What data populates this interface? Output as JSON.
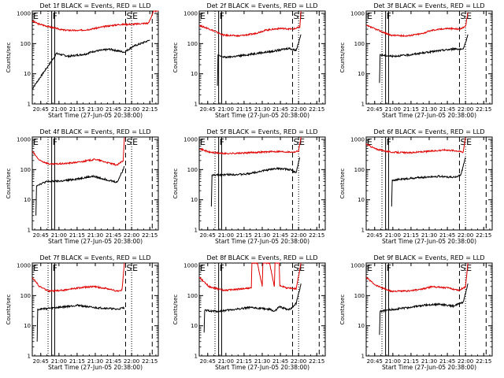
{
  "colors": {
    "background": "#ffffff",
    "events": "#000000",
    "lld": "#e00000",
    "axis": "#000000"
  },
  "chart_data": [
    {
      "type": "line",
      "title": "Det 1f BLACK = Events, RED = LLD",
      "xlabel": "Start Time (27-Jun-05 20:38:00)",
      "ylabel": "Counts/sec",
      "yscale": "log",
      "ylim": [
        1,
        1200
      ],
      "xlim": [
        0,
        104
      ],
      "xtick_values": [
        7,
        22,
        37,
        52,
        67,
        82,
        97
      ],
      "xtick_labels": [
        "20:45",
        "21:00",
        "21:15",
        "21:30",
        "21:45",
        "22:00",
        "22:15"
      ],
      "ytick_values": [
        1,
        10,
        100,
        1000
      ],
      "ytick_labels": [
        "1",
        "10",
        "100",
        "1000"
      ],
      "markers": [
        {
          "label": "E",
          "x": 0
        },
        {
          "label": "F",
          "x": 16
        },
        {
          "label": "S",
          "x": 77
        },
        {
          "label": "E",
          "x": 82
        }
      ],
      "events": {
        "x": [
          0,
          19,
          19.5,
          30,
          44,
          50,
          64,
          76,
          83,
          97
        ],
        "values": [
          3.2,
          40,
          47,
          38,
          45,
          55,
          65,
          52,
          80,
          130
        ]
      },
      "lld": {
        "x": [
          0,
          5,
          18,
          26,
          38,
          48,
          60,
          72,
          84,
          96,
          100,
          104
        ],
        "values": [
          560,
          450,
          330,
          280,
          270,
          300,
          370,
          430,
          440,
          480,
          1150,
          1250
        ]
      }
    },
    {
      "type": "line",
      "title": "Det 2f BLACK = Events, RED = LLD",
      "xlabel": "Start Time (27-Jun-05 20:38:00)",
      "ylabel": "Counts/sec",
      "yscale": "log",
      "ylim": [
        1,
        1200
      ],
      "xlim": [
        0,
        104
      ],
      "xtick_values": [
        7,
        22,
        37,
        52,
        67,
        82,
        97
      ],
      "xtick_labels": [
        "20:45",
        "21:00",
        "21:15",
        "21:30",
        "21:45",
        "22:00",
        "22:15"
      ],
      "ytick_values": [
        1,
        10,
        100,
        1000
      ],
      "ytick_labels": [
        "1",
        "10",
        "100",
        "1000"
      ],
      "markers": [
        {
          "label": "E",
          "x": 0
        },
        {
          "label": "F",
          "x": 16
        },
        {
          "label": "S",
          "x": 77
        },
        {
          "label": "E",
          "x": 82
        }
      ],
      "events": {
        "x": [
          15,
          15.5,
          22,
          35,
          48,
          60,
          74,
          80,
          84
        ],
        "values": [
          4,
          40,
          35,
          40,
          48,
          55,
          70,
          60,
          200
        ],
        "tail": [
          [
            80,
            30
          ],
          [
            85,
            20
          ],
          [
            86,
            12
          ],
          [
            87,
            9
          ]
        ]
      },
      "lld": {
        "x": [
          0,
          8,
          20,
          33,
          45,
          55,
          67,
          77,
          83,
          84
        ],
        "values": [
          400,
          310,
          190,
          180,
          210,
          280,
          320,
          300,
          350,
          1200
        ]
      }
    },
    {
      "type": "line",
      "title": "Det 3f BLACK = Events, RED = LLD",
      "xlabel": "Start Time (27-Jun-05 20:38:00)",
      "ylabel": "Counts/sec",
      "yscale": "log",
      "ylim": [
        1,
        1200
      ],
      "xlim": [
        0,
        104
      ],
      "xtick_values": [
        7,
        22,
        37,
        52,
        67,
        82,
        97
      ],
      "xtick_labels": [
        "20:45",
        "21:00",
        "21:15",
        "21:30",
        "21:45",
        "22:00",
        "22:15"
      ],
      "ytick_values": [
        1,
        10,
        100,
        1000
      ],
      "ytick_labels": [
        "1",
        "10",
        "100",
        "1000"
      ],
      "markers": [
        {
          "label": "E",
          "x": 0
        },
        {
          "label": "F",
          "x": 16
        },
        {
          "label": "S",
          "x": 77
        },
        {
          "label": "E",
          "x": 82
        }
      ],
      "events": {
        "x": [
          11,
          11.5,
          22,
          35,
          48,
          60,
          74,
          80,
          84
        ],
        "values": [
          5,
          42,
          38,
          42,
          50,
          58,
          68,
          62,
          200
        ]
      },
      "lld": {
        "x": [
          0,
          8,
          20,
          33,
          45,
          55,
          67,
          77,
          82,
          84
        ],
        "values": [
          400,
          300,
          190,
          180,
          210,
          280,
          320,
          300,
          360,
          1100
        ]
      }
    },
    {
      "type": "line",
      "title": "Det 4f BLACK = Events, RED = LLD",
      "xlabel": "Start Time (27-Jun-05 20:38:00)",
      "ylabel": "Counts/sec",
      "yscale": "log",
      "ylim": [
        1,
        1200
      ],
      "xlim": [
        0,
        104
      ],
      "xtick_values": [
        7,
        22,
        37,
        52,
        67,
        82,
        97
      ],
      "xtick_labels": [
        "20:45",
        "21:00",
        "21:15",
        "21:30",
        "21:45",
        "22:00",
        "22:15"
      ],
      "ytick_values": [
        1,
        10,
        100,
        1000
      ],
      "ytick_labels": [
        "1",
        "10",
        "100",
        "1000"
      ],
      "markers": [
        {
          "label": "E",
          "x": 0
        },
        {
          "label": "F",
          "x": 16
        },
        {
          "label": "S",
          "x": 77
        },
        {
          "label": "E",
          "x": 82
        }
      ],
      "events": {
        "x": [
          3,
          3.5,
          12,
          25,
          38,
          50,
          60,
          70,
          75,
          76
        ],
        "values": [
          3,
          30,
          40,
          42,
          50,
          60,
          48,
          38,
          100,
          130
        ]
      },
      "lld": {
        "x": [
          0,
          6,
          15,
          28,
          40,
          52,
          60,
          70,
          75,
          76
        ],
        "values": [
          400,
          200,
          150,
          160,
          180,
          220,
          180,
          140,
          200,
          1150
        ]
      }
    },
    {
      "type": "line",
      "title": "Det 5f BLACK = Events, RED = LLD",
      "xlabel": "Start Time (27-Jun-05 20:38:00)",
      "ylabel": "Counts/sec",
      "yscale": "log",
      "ylim": [
        1,
        1200
      ],
      "xlim": [
        0,
        104
      ],
      "xtick_values": [
        7,
        22,
        37,
        52,
        67,
        82,
        97
      ],
      "xtick_labels": [
        "20:45",
        "21:00",
        "21:15",
        "21:30",
        "21:45",
        "22:00",
        "22:15"
      ],
      "ytick_values": [
        1,
        10,
        100,
        1000
      ],
      "ytick_labels": [
        "1",
        "10",
        "100",
        "1000"
      ],
      "markers": [
        {
          "label": "E",
          "x": 0
        },
        {
          "label": "F",
          "x": 16
        },
        {
          "label": "S",
          "x": 77
        },
        {
          "label": "E",
          "x": 82
        }
      ],
      "events": {
        "x": [
          10,
          10.5,
          22,
          38,
          52,
          64,
          75,
          80,
          83
        ],
        "values": [
          6,
          65,
          68,
          70,
          90,
          110,
          100,
          80,
          250
        ]
      },
      "lld": {
        "x": [
          0,
          8,
          20,
          35,
          50,
          65,
          78,
          82,
          84
        ],
        "values": [
          500,
          380,
          340,
          350,
          380,
          400,
          380,
          420,
          1200
        ]
      }
    },
    {
      "type": "line",
      "title": "Det 6f BLACK = Events, RED = LLD",
      "xlabel": "Start Time (27-Jun-05 20:38:00)",
      "ylabel": "Counts/sec",
      "yscale": "log",
      "ylim": [
        1,
        1200
      ],
      "xlim": [
        0,
        104
      ],
      "xtick_values": [
        7,
        22,
        37,
        52,
        67,
        82,
        97
      ],
      "xtick_labels": [
        "20:45",
        "21:00",
        "21:15",
        "21:30",
        "21:45",
        "22:00",
        "22:15"
      ],
      "ytick_values": [
        1,
        10,
        100,
        1000
      ],
      "ytick_labels": [
        "1",
        "10",
        "100",
        "1000"
      ],
      "markers": [
        {
          "label": "E",
          "x": 0
        },
        {
          "label": "F",
          "x": 16
        },
        {
          "label": "S",
          "x": 77
        },
        {
          "label": "E",
          "x": 82
        }
      ],
      "events": {
        "x": [
          21,
          21.5,
          30,
          45,
          60,
          72,
          78,
          82
        ],
        "values": [
          6,
          45,
          48,
          55,
          60,
          55,
          65,
          250
        ]
      },
      "lld": {
        "x": [
          0,
          8,
          20,
          35,
          50,
          65,
          75,
          80,
          82
        ],
        "values": [
          700,
          480,
          380,
          360,
          400,
          450,
          420,
          380,
          1150
        ]
      }
    },
    {
      "type": "line",
      "title": "Det 7f BLACK = Events, RED = LLD",
      "xlabel": "Start Time (27-Jun-05 20:38:00)",
      "ylabel": "Counts/sec",
      "yscale": "log",
      "ylim": [
        1,
        1200
      ],
      "xlim": [
        0,
        104
      ],
      "xtick_values": [
        7,
        22,
        37,
        52,
        67,
        82,
        97
      ],
      "xtick_labels": [
        "20:45",
        "21:00",
        "21:15",
        "21:30",
        "21:45",
        "22:00",
        "22:15"
      ],
      "ytick_values": [
        1,
        10,
        100,
        1000
      ],
      "ytick_labels": [
        "1",
        "10",
        "100",
        "1000"
      ],
      "markers": [
        {
          "label": "E",
          "x": 0
        },
        {
          "label": "F",
          "x": 16
        },
        {
          "label": "S",
          "x": 77
        },
        {
          "label": "E",
          "x": 82
        }
      ],
      "events": {
        "x": [
          4,
          4.5,
          14,
          25,
          38,
          50,
          62,
          70,
          76
        ],
        "values": [
          3,
          35,
          38,
          42,
          48,
          40,
          38,
          35,
          40
        ]
      },
      "lld": {
        "x": [
          0,
          6,
          14,
          25,
          38,
          50,
          62,
          70,
          74,
          76
        ],
        "values": [
          400,
          200,
          140,
          150,
          180,
          200,
          170,
          140,
          150,
          1200
        ]
      }
    },
    {
      "type": "line",
      "title": "Det 8f BLACK = Events, RED = LLD",
      "xlabel": "Start Time (27-Jun-05 20:38:00)",
      "ylabel": "Counts/sec",
      "yscale": "log",
      "ylim": [
        1,
        1200
      ],
      "xlim": [
        0,
        104
      ],
      "xtick_values": [
        7,
        22,
        37,
        52,
        67,
        82,
        97
      ],
      "xtick_labels": [
        "20:45",
        "21:00",
        "21:15",
        "21:30",
        "21:45",
        "22:00",
        "22:15"
      ],
      "ytick_values": [
        1,
        10,
        100,
        1000
      ],
      "ytick_labels": [
        "1",
        "10",
        "100",
        "1000"
      ],
      "markers": [
        {
          "label": "E",
          "x": 0
        },
        {
          "label": "F",
          "x": 16
        },
        {
          "label": "S",
          "x": 77
        },
        {
          "label": "E",
          "x": 82
        }
      ],
      "events": {
        "x": [
          4,
          4.5,
          15,
          30,
          40,
          50,
          58,
          62,
          66,
          68,
          72,
          75,
          80,
          84
        ],
        "values": [
          6,
          32,
          30,
          35,
          40,
          38,
          35,
          30,
          42,
          40,
          36,
          35,
          55,
          250
        ]
      },
      "lld": {
        "x": [
          0,
          8,
          20,
          30,
          43,
          43.5,
          48,
          52,
          52.5,
          58,
          62,
          62.5,
          66,
          66.5,
          72,
          80,
          84
        ],
        "values": [
          400,
          200,
          150,
          160,
          180,
          1200,
          1200,
          200,
          1200,
          1200,
          200,
          1200,
          1200,
          220,
          180,
          170,
          1200
        ]
      }
    },
    {
      "type": "line",
      "title": "Det 9f BLACK = Events, RED = LLD",
      "xlabel": "Start Time (27-Jun-05 20:38:00)",
      "ylabel": "Counts/sec",
      "yscale": "log",
      "ylim": [
        1,
        1200
      ],
      "xlim": [
        0,
        104
      ],
      "xtick_values": [
        7,
        22,
        37,
        52,
        67,
        82,
        97
      ],
      "xtick_labels": [
        "20:45",
        "21:00",
        "21:15",
        "21:30",
        "21:45",
        "22:00",
        "22:15"
      ],
      "ytick_values": [
        1,
        10,
        100,
        1000
      ],
      "ytick_labels": [
        "1",
        "10",
        "100",
        "1000"
      ],
      "markers": [
        {
          "label": "E",
          "x": 0
        },
        {
          "label": "F",
          "x": 16
        },
        {
          "label": "S",
          "x": 77
        },
        {
          "label": "E",
          "x": 82
        }
      ],
      "events": {
        "x": [
          11,
          11.5,
          22,
          35,
          48,
          60,
          72,
          80,
          84
        ],
        "values": [
          5,
          30,
          35,
          40,
          48,
          52,
          45,
          60,
          250
        ]
      },
      "lld": {
        "x": [
          0,
          8,
          20,
          33,
          45,
          55,
          67,
          77,
          82,
          84
        ],
        "values": [
          400,
          220,
          140,
          140,
          160,
          200,
          180,
          150,
          200,
          1200
        ]
      }
    }
  ]
}
